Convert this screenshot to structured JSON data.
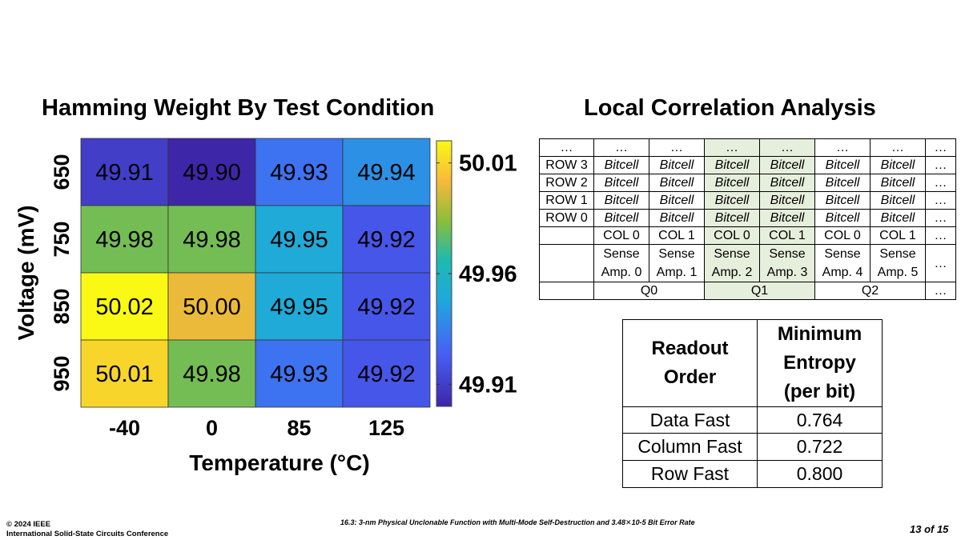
{
  "chart_data": {
    "type": "heatmap",
    "title": "Hamming Weight By Test Condition",
    "xlabel": "Temperature (°C)",
    "ylabel": "Voltage (mV)",
    "x_categories": [
      "-40",
      "0",
      "85",
      "125"
    ],
    "y_categories": [
      "650",
      "750",
      "850",
      "950"
    ],
    "values": [
      [
        49.91,
        49.9,
        49.93,
        49.94
      ],
      [
        49.98,
        49.98,
        49.95,
        49.92
      ],
      [
        50.02,
        50.0,
        49.95,
        49.92
      ],
      [
        50.01,
        49.98,
        49.93,
        49.92
      ]
    ],
    "value_labels": [
      [
        "49.91",
        "49.90",
        "49.93",
        "49.94"
      ],
      [
        "49.98",
        "49.98",
        "49.95",
        "49.92"
      ],
      [
        "50.02",
        "50.00",
        "49.95",
        "49.92"
      ],
      [
        "50.01",
        "49.98",
        "49.93",
        "49.92"
      ]
    ],
    "colorbar": {
      "min": 49.9,
      "max": 50.02,
      "ticks": [
        "50.01",
        "49.96",
        "49.91"
      ],
      "tick_values": [
        50.01,
        49.96,
        49.91
      ],
      "colormap": "parula"
    }
  },
  "local_correlation": {
    "title": "Local Correlation Analysis",
    "ellipsis": "…",
    "row_labels": [
      "ROW 3",
      "ROW 2",
      "ROW 1",
      "ROW 0"
    ],
    "cell_label": "Bitcell",
    "col_labels": [
      "COL 0",
      "COL 1",
      "COL 0",
      "COL 1",
      "COL 0",
      "COL 1"
    ],
    "sense_top": "Sense",
    "sense_amps": [
      "Amp. 0",
      "Amp. 1",
      "Amp. 2",
      "Amp. 3",
      "Amp. 4",
      "Amp. 5"
    ],
    "groups": [
      "Q0",
      "Q1",
      "Q2"
    ],
    "highlight_color": "#e6efdc"
  },
  "entropy_table": {
    "header_order_line1": "Readout",
    "header_order_line2": "Order",
    "header_entropy_line1": "Minimum",
    "header_entropy_line2": "Entropy",
    "header_entropy_line3": "(per bit)",
    "rows": [
      {
        "order": "Data Fast",
        "entropy": "0.764"
      },
      {
        "order": "Column Fast",
        "entropy": "0.722"
      },
      {
        "order": "Row Fast",
        "entropy": "0.800"
      }
    ]
  },
  "footer": {
    "copyright": "© 2024 IEEE",
    "conference": "International Solid-State Circuits Conference",
    "paper": "16.3: 3-nm Physical Unclonable Function with Multi-Mode Self-Destruction and 3.48✕10-5 Bit Error Rate",
    "page": "13 of 15"
  }
}
